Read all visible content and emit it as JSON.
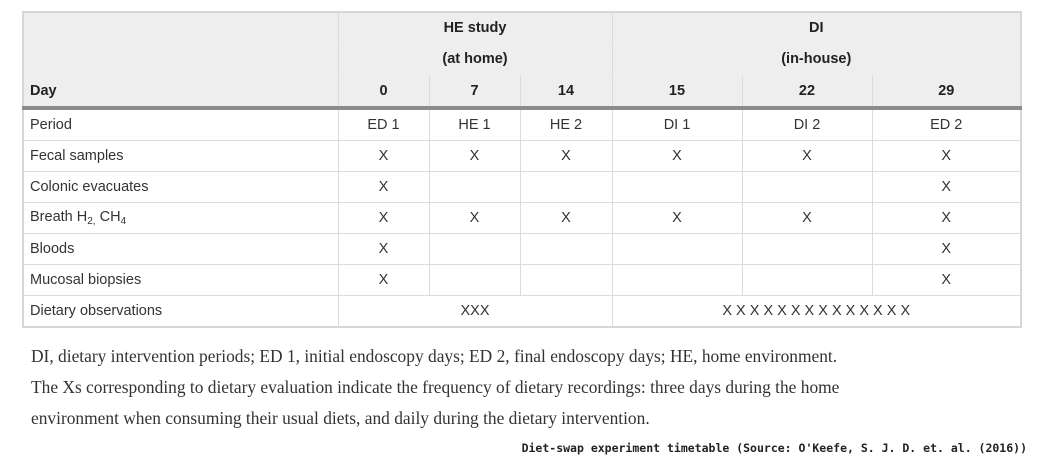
{
  "table": {
    "header": {
      "he_title": "HE study",
      "he_sub": "(at home)",
      "di_title": "DI",
      "di_sub": "(in-house)",
      "day_label": "Day",
      "days": [
        "0",
        "7",
        "14",
        "15",
        "22",
        "29"
      ]
    },
    "rows": [
      {
        "label": "Period",
        "cells": [
          "ED 1",
          "HE 1",
          "HE 2",
          "DI 1",
          "DI 2",
          "ED 2"
        ]
      },
      {
        "label": "Fecal samples",
        "cells": [
          "X",
          "X",
          "X",
          "X",
          "X",
          "X"
        ]
      },
      {
        "label": "Colonic evacuates",
        "cells": [
          "X",
          "",
          "",
          "",
          "",
          "X"
        ]
      },
      {
        "label_parts": [
          "Breath H",
          "2,",
          " CH",
          "4"
        ],
        "cells": [
          "X",
          "X",
          "X",
          "X",
          "X",
          "X"
        ]
      },
      {
        "label": "Bloods",
        "cells": [
          "X",
          "",
          "",
          "",
          "",
          "X"
        ]
      },
      {
        "label": "Mucosal biopsies",
        "cells": [
          "X",
          "",
          "",
          "",
          "",
          "X"
        ]
      }
    ],
    "dietary": {
      "label": "Dietary observations",
      "he_value": "XXX",
      "di_value": "X X X X X X X X X X X X X X"
    }
  },
  "note": {
    "line1": "DI, dietary intervention periods; ED 1, initial endoscopy days; ED 2, final endoscopy days; HE, home environment.",
    "line2": "The Xs corresponding to dietary evaluation indicate the frequency of dietary recordings: three days during the home",
    "line3": "environment when consuming their usual diets, and daily during the dietary intervention."
  },
  "caption": "Diet-swap experiment timetable (Source: O'Keefe, S. J. D. et. al. (2016))"
}
